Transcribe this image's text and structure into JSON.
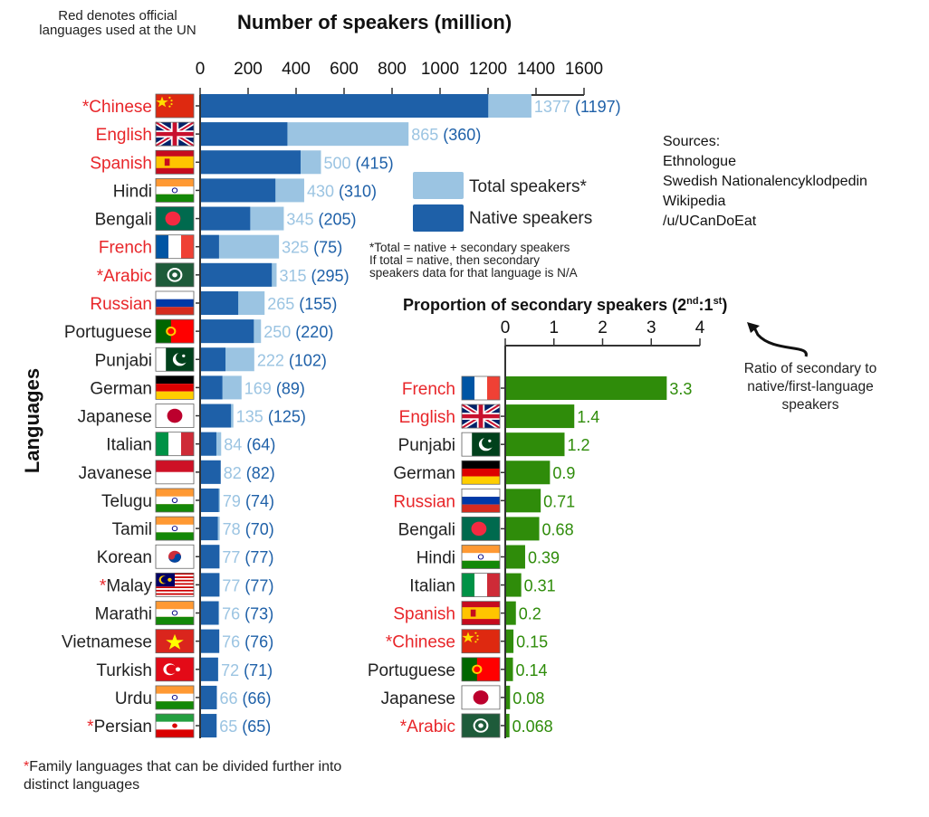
{
  "colors": {
    "native": "#1e60a8",
    "total": "#9bc4e2",
    "ratio": "#2f8c0a",
    "official": "#e8262a"
  },
  "header_note": "Red denotes official languages used at the UN",
  "footer_note": {
    "asterisk": "*",
    "text": "Family languages that can be divided further into distinct languages"
  },
  "sources": {
    "title": "Sources:",
    "items": [
      "Ethnologue",
      "Swedish Nationalencyklodpedin",
      "Wikipedia",
      "/u/UCanDoEat"
    ]
  },
  "legend": {
    "total": "Total speakers*",
    "native": "Native speakers"
  },
  "footnote": [
    "*Total = native + secondary speakers",
    "If total = native, then secondary",
    "speakers data for that language is N/A"
  ],
  "annotation": [
    "Ratio of secondary to",
    "native/first-language",
    "speakers"
  ],
  "chart_data": [
    {
      "type": "bar",
      "orientation": "horizontal",
      "title": "Number of speakers (million)",
      "ylabel": "Languages",
      "xlim": [
        0,
        1600
      ],
      "xticks": [
        "0",
        "200",
        "400",
        "600",
        "800",
        "1000",
        "1200",
        "1400",
        "1600"
      ],
      "legend_position": "right",
      "categories": [
        {
          "name": "Chinese",
          "official": true,
          "family": true,
          "flag": "china"
        },
        {
          "name": "English",
          "official": true,
          "family": false,
          "flag": "uk"
        },
        {
          "name": "Spanish",
          "official": true,
          "family": false,
          "flag": "spain"
        },
        {
          "name": "Hindi",
          "official": false,
          "family": false,
          "flag": "india"
        },
        {
          "name": "Bengali",
          "official": false,
          "family": false,
          "flag": "bangladesh"
        },
        {
          "name": "French",
          "official": true,
          "family": false,
          "flag": "france"
        },
        {
          "name": "Arabic",
          "official": true,
          "family": true,
          "flag": "arab"
        },
        {
          "name": "Russian",
          "official": true,
          "family": false,
          "flag": "russia"
        },
        {
          "name": "Portuguese",
          "official": false,
          "family": false,
          "flag": "portugal"
        },
        {
          "name": "Punjabi",
          "official": false,
          "family": false,
          "flag": "pakistan"
        },
        {
          "name": "German",
          "official": false,
          "family": false,
          "flag": "germany"
        },
        {
          "name": "Japanese",
          "official": false,
          "family": false,
          "flag": "japan"
        },
        {
          "name": "Italian",
          "official": false,
          "family": false,
          "flag": "italy"
        },
        {
          "name": "Javanese",
          "official": false,
          "family": false,
          "flag": "indonesia"
        },
        {
          "name": "Telugu",
          "official": false,
          "family": false,
          "flag": "india"
        },
        {
          "name": "Tamil",
          "official": false,
          "family": false,
          "flag": "india"
        },
        {
          "name": "Korean",
          "official": false,
          "family": false,
          "flag": "korea"
        },
        {
          "name": "Malay",
          "official": false,
          "family": true,
          "flag": "malaysia"
        },
        {
          "name": "Marathi",
          "official": false,
          "family": false,
          "flag": "india"
        },
        {
          "name": "Vietnamese",
          "official": false,
          "family": false,
          "flag": "vietnam"
        },
        {
          "name": "Turkish",
          "official": false,
          "family": false,
          "flag": "turkey"
        },
        {
          "name": "Urdu",
          "official": false,
          "family": false,
          "flag": "india"
        },
        {
          "name": "Persian",
          "official": false,
          "family": true,
          "flag": "iran"
        }
      ],
      "series": [
        {
          "name": "Total speakers*",
          "values": [
            1377,
            865,
            500,
            430,
            345,
            325,
            315,
            265,
            250,
            222,
            169,
            135,
            84,
            82,
            79,
            78,
            77,
            77,
            76,
            76,
            72,
            66,
            65
          ]
        },
        {
          "name": "Native speakers",
          "values": [
            1197,
            360,
            415,
            310,
            205,
            75,
            295,
            155,
            220,
            102,
            89,
            125,
            64,
            82,
            74,
            70,
            77,
            77,
            73,
            76,
            71,
            66,
            65
          ]
        }
      ]
    },
    {
      "type": "bar",
      "orientation": "horizontal",
      "title": "Proportion of secondary speakers (2nd:1st)",
      "title_parts": {
        "main": "Proportion of secondary speakers (2",
        "sup1": "nd",
        "mid": ":1",
        "sup2": "st",
        "end": ")"
      },
      "xlim": [
        0,
        4
      ],
      "xticks": [
        "0",
        "1",
        "2",
        "3",
        "4"
      ],
      "categories": [
        {
          "name": "French",
          "official": true,
          "family": false,
          "flag": "france"
        },
        {
          "name": "English",
          "official": true,
          "family": false,
          "flag": "uk"
        },
        {
          "name": "Punjabi",
          "official": false,
          "family": false,
          "flag": "pakistan"
        },
        {
          "name": "German",
          "official": false,
          "family": false,
          "flag": "germany"
        },
        {
          "name": "Russian",
          "official": true,
          "family": false,
          "flag": "russia"
        },
        {
          "name": "Bengali",
          "official": false,
          "family": false,
          "flag": "bangladesh"
        },
        {
          "name": "Hindi",
          "official": false,
          "family": false,
          "flag": "india"
        },
        {
          "name": "Italian",
          "official": false,
          "family": false,
          "flag": "italy"
        },
        {
          "name": "Spanish",
          "official": true,
          "family": false,
          "flag": "spain"
        },
        {
          "name": "Chinese",
          "official": true,
          "family": true,
          "flag": "china"
        },
        {
          "name": "Portuguese",
          "official": false,
          "family": false,
          "flag": "portugal"
        },
        {
          "name": "Japanese",
          "official": false,
          "family": false,
          "flag": "japan"
        },
        {
          "name": "Arabic",
          "official": true,
          "family": true,
          "flag": "arab"
        }
      ],
      "values": [
        3.3,
        1.4,
        1.2,
        0.9,
        0.71,
        0.68,
        0.39,
        0.31,
        0.2,
        0.15,
        0.14,
        0.08,
        0.068
      ],
      "value_labels": [
        "3.3",
        "1.4",
        "1.2",
        "0.9",
        "0.71",
        "0.68",
        "0.39",
        "0.31",
        "0.2",
        "0.15",
        "0.14",
        "0.08",
        "0.068"
      ]
    }
  ]
}
